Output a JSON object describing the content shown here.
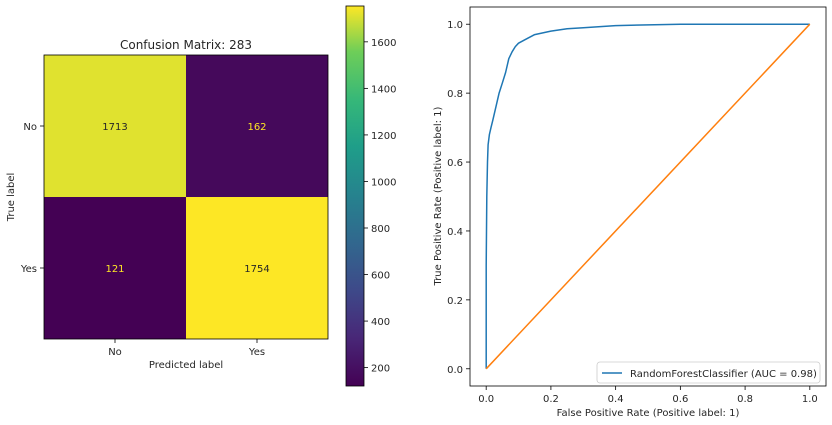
{
  "chart_data": [
    {
      "type": "heatmap",
      "title": "Confusion Matrix: 283",
      "xlabel": "Predicted label",
      "ylabel": "True label",
      "x_categories": [
        "No",
        "Yes"
      ],
      "y_categories": [
        "No",
        "Yes"
      ],
      "values": [
        [
          1713,
          162
        ],
        [
          121,
          1754
        ]
      ],
      "colormap": "viridis",
      "colorbar": {
        "min": 121,
        "max": 1754,
        "ticks": [
          200,
          400,
          600,
          800,
          1000,
          1200,
          1400,
          1600
        ]
      }
    },
    {
      "type": "line",
      "title": "",
      "xlabel": "False Positive Rate (Positive label: 1)",
      "ylabel": "True Positive Rate (Positive label: 1)",
      "xlim": [
        -0.05,
        1.05
      ],
      "ylim": [
        -0.05,
        1.05
      ],
      "xticks": [
        "0.0",
        "0.2",
        "0.4",
        "0.6",
        "0.8",
        "1.0"
      ],
      "yticks": [
        "0.0",
        "0.2",
        "0.4",
        "0.6",
        "0.8",
        "1.0"
      ],
      "legend_position": "lower-right",
      "series": [
        {
          "name": "RandomForestClassifier (AUC = 0.98)",
          "color": "#1f77b4",
          "x": [
            0,
            0,
            0.002,
            0.004,
            0.006,
            0.01,
            0.015,
            0.02,
            0.03,
            0.04,
            0.05,
            0.06,
            0.07,
            0.08,
            0.09,
            0.1,
            0.12,
            0.15,
            0.2,
            0.25,
            0.3,
            0.4,
            0.5,
            0.6,
            0.8,
            1.0
          ],
          "y": [
            0,
            0.3,
            0.5,
            0.6,
            0.65,
            0.68,
            0.7,
            0.72,
            0.76,
            0.8,
            0.83,
            0.86,
            0.9,
            0.92,
            0.935,
            0.945,
            0.955,
            0.97,
            0.98,
            0.987,
            0.99,
            0.996,
            0.998,
            1.0,
            1.0,
            1.0
          ]
        },
        {
          "name": "",
          "color": "#ff7f0e",
          "x": [
            0,
            1
          ],
          "y": [
            0,
            1
          ]
        }
      ]
    }
  ]
}
